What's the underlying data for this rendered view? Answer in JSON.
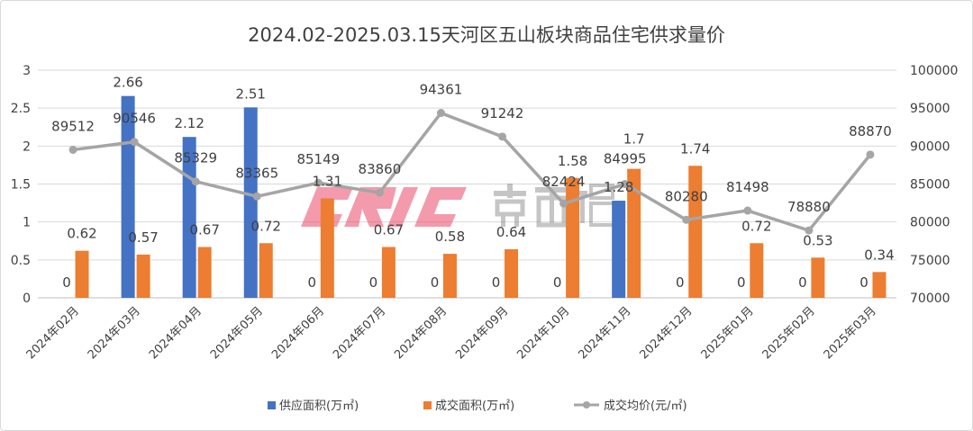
{
  "chart_data": {
    "type": "bar+line",
    "title": "2024.02-2025.03.15天河区五山板块商品住宅供求量价",
    "categories": [
      "2024年02月",
      "2024年03月",
      "2024年04月",
      "2024年05月",
      "2024年06月",
      "2024年07月",
      "2024年08月",
      "2024年09月",
      "2024年10月",
      "2024年11月",
      "2024年12月",
      "2025年01月",
      "2025年02月",
      "2025年03月"
    ],
    "series": [
      {
        "name": "供应面积(万㎡)",
        "type": "bar",
        "axis": "left",
        "color": "#4472C4",
        "values": [
          0,
          2.66,
          2.12,
          2.51,
          0,
          0,
          0,
          0,
          0,
          1.28,
          0,
          0,
          0,
          0
        ],
        "labels": [
          "0",
          "2.66",
          "2.12",
          "2.51",
          "0",
          "0",
          "0",
          "0",
          "0",
          "1.28",
          "0",
          "0",
          "0",
          "0"
        ]
      },
      {
        "name": "成交面积(万㎡)",
        "type": "bar",
        "axis": "left",
        "color": "#ED7D31",
        "values": [
          0.62,
          0.57,
          0.67,
          0.72,
          1.31,
          0.67,
          0.58,
          0.64,
          1.58,
          1.7,
          1.74,
          0.72,
          0.53,
          0.34
        ],
        "labels": [
          "0.62",
          "0.57",
          "0.67",
          "0.72",
          "1.31",
          "0.67",
          "0.58",
          "0.64",
          "1.58",
          "1.7",
          "1.74",
          "0.72",
          "0.53",
          "0.34"
        ]
      },
      {
        "name": "成交均价(元/㎡)",
        "type": "line",
        "axis": "right",
        "color": "#A5A5A5",
        "values": [
          89512,
          90546,
          85329,
          83365,
          85149,
          83860,
          94361,
          91242,
          82424,
          84995,
          80280,
          81498,
          78880,
          88870
        ],
        "labels": [
          "89512",
          "90546",
          "85329",
          "83365",
          "85149",
          "83860",
          "94361",
          "91242",
          "82424",
          "84995",
          "80280",
          "81498",
          "78880",
          "88870"
        ]
      }
    ],
    "y_left": {
      "range": [
        0,
        3
      ],
      "ticks": [
        "0",
        "0.5",
        "1",
        "1.5",
        "2",
        "2.5",
        "3"
      ]
    },
    "y_right": {
      "range": [
        70000,
        100000
      ],
      "ticks": [
        "70000",
        "75000",
        "80000",
        "85000",
        "90000",
        "95000",
        "100000"
      ]
    },
    "grid": true,
    "legend_position": "bottom",
    "watermark": "CRIC 克而瑞"
  }
}
